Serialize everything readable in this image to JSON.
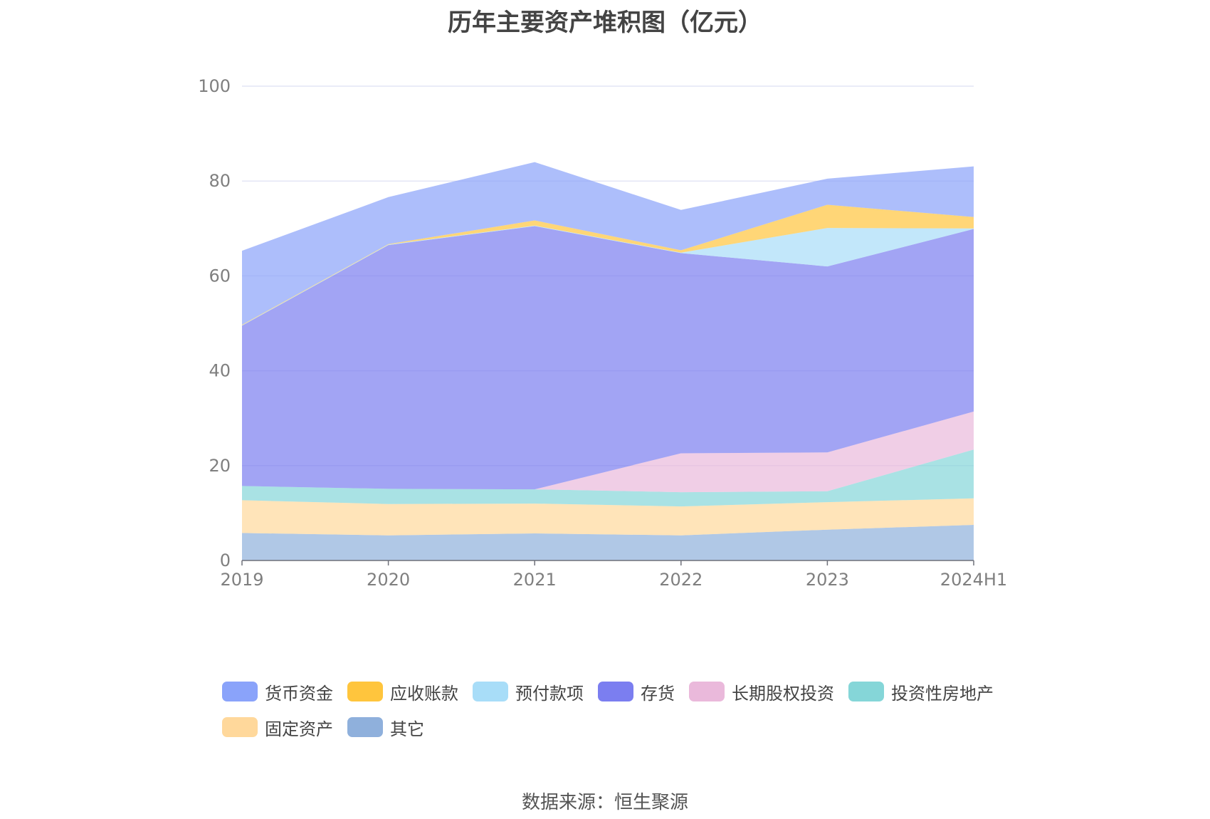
{
  "chart_data": {
    "type": "area",
    "stacked": true,
    "title": "历年主要资产堆积图（亿元）",
    "categories": [
      "2019",
      "2020",
      "2021",
      "2022",
      "2023",
      "2024H1"
    ],
    "ylim": [
      0,
      100
    ],
    "yticks": [
      "0",
      "20",
      "40",
      "60",
      "80",
      "100"
    ],
    "grid": true,
    "legend_position": "bottom",
    "series": [
      {
        "name": "其它",
        "color": "#8fb0dc",
        "values": [
          5.8,
          5.3,
          5.7,
          5.3,
          6.5,
          7.5
        ]
      },
      {
        "name": "固定资产",
        "color": "#ffd89b",
        "values": [
          6.9,
          6.6,
          6.3,
          6.1,
          5.8,
          5.6
        ]
      },
      {
        "name": "投资性房地产",
        "color": "#85d6d8",
        "values": [
          3.0,
          3.2,
          3.0,
          3.0,
          2.3,
          10.3
        ]
      },
      {
        "name": "长期股权投资",
        "color": "#eab9db",
        "values": [
          0,
          0,
          0,
          8.2,
          8.2,
          8.0
        ]
      },
      {
        "name": "存货",
        "color": "#7b7ef0",
        "values": [
          33.8,
          51.4,
          55.5,
          42.2,
          39.2,
          38.5
        ]
      },
      {
        "name": "预付款项",
        "color": "#a8ddf8",
        "values": [
          0.1,
          0.1,
          0.1,
          0.1,
          8.1,
          0.1
        ]
      },
      {
        "name": "应收账款",
        "color": "#ffc53d",
        "values": [
          0.1,
          0.1,
          1.1,
          0.5,
          4.9,
          2.4
        ]
      },
      {
        "name": "货币资金",
        "color": "#8aa3fa",
        "values": [
          15.6,
          9.9,
          12.3,
          8.5,
          5.5,
          10.7
        ]
      }
    ]
  },
  "legend_order": [
    "货币资金",
    "应收账款",
    "预付款项",
    "存货",
    "长期股权投资",
    "投资性房地产",
    "固定资产",
    "其它"
  ],
  "source": "数据来源：恒生聚源"
}
